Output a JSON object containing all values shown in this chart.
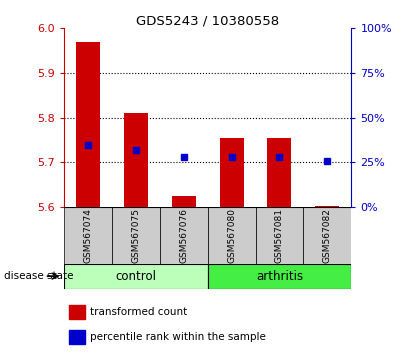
{
  "title": "GDS5243 / 10380558",
  "samples": [
    "GSM567074",
    "GSM567075",
    "GSM567076",
    "GSM567080",
    "GSM567081",
    "GSM567082"
  ],
  "transformed_counts": [
    5.97,
    5.81,
    5.625,
    5.755,
    5.755,
    5.602
  ],
  "percentile_ranks": [
    35,
    32,
    28,
    28,
    28,
    26
  ],
  "ylim_left": [
    5.6,
    6.0
  ],
  "ylim_right": [
    0,
    100
  ],
  "yticks_left": [
    5.6,
    5.7,
    5.8,
    5.9,
    6.0
  ],
  "yticks_right": [
    0,
    25,
    50,
    75,
    100
  ],
  "bar_color": "#cc0000",
  "dot_color": "#0000cc",
  "bar_bottom": 5.6,
  "bar_width": 0.5,
  "sample_box_color": "#cccccc",
  "control_color": "#bbffbb",
  "arthritis_color": "#44ee44",
  "group_spans": [
    {
      "label": "control",
      "start": 0,
      "end": 2
    },
    {
      "label": "arthritis",
      "start": 3,
      "end": 5
    }
  ],
  "disease_state_label": "disease state",
  "legend_items": [
    {
      "label": "transformed count",
      "color": "#cc0000"
    },
    {
      "label": "percentile rank within the sample",
      "color": "#0000cc"
    }
  ]
}
